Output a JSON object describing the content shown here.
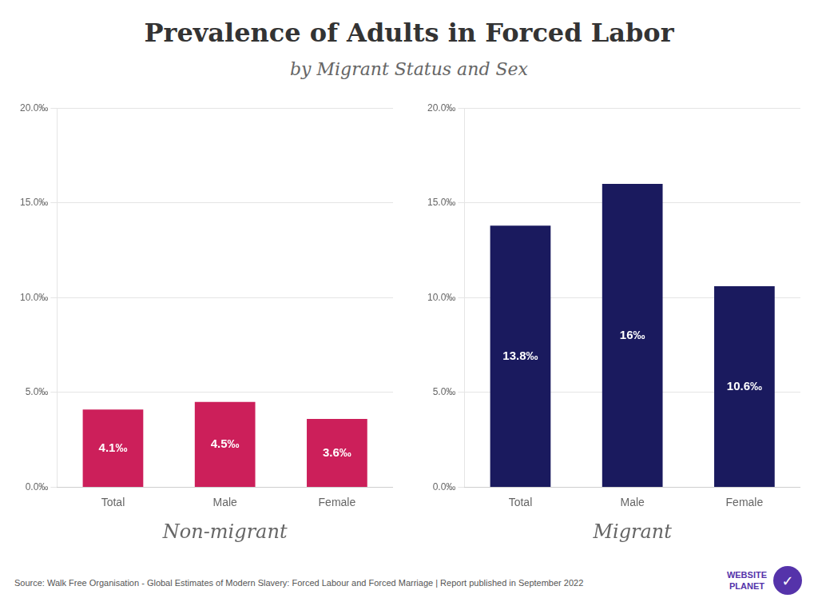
{
  "title": "Prevalence of Adults in Forced Labor",
  "subtitle": "by Migrant Status and Sex",
  "annotations": [
    "Source: Walk Free Organisation - Global Estimates of Modern Slavery: Forced Labour and Forced Marriage | Report published in September 2022",
    "WEBSITE\nPLANET",
    "✓"
  ],
  "chart_data": [
    {
      "type": "bar",
      "x_label": "Non-migrant",
      "categories": [
        "Total",
        "Male",
        "Female"
      ],
      "values": [
        4.1,
        4.5,
        3.6
      ],
      "value_labels": [
        "4.1‰",
        "4.5‰",
        "3.6‰"
      ],
      "color": "#cc1f5a",
      "ylim": [
        0,
        20
      ],
      "yticks": [
        {
          "value": 0,
          "label": "0.0‰"
        },
        {
          "value": 5,
          "label": "5.0‰"
        },
        {
          "value": 10,
          "label": "10.0‰"
        },
        {
          "value": 15,
          "label": "15.0‰"
        },
        {
          "value": 20,
          "label": "20.0‰"
        }
      ],
      "grid": true,
      "data_labels": true
    },
    {
      "type": "bar",
      "x_label": "Migrant",
      "categories": [
        "Total",
        "Male",
        "Female"
      ],
      "values": [
        13.8,
        16.0,
        10.6
      ],
      "value_labels": [
        "13.8‰",
        "16‰",
        "10.6‰"
      ],
      "color": "#1a1a5e",
      "ylim": [
        0,
        20
      ],
      "yticks": [
        {
          "value": 0,
          "label": "0.0‰"
        },
        {
          "value": 5,
          "label": "5.0‰"
        },
        {
          "value": 10,
          "label": "10.0‰"
        },
        {
          "value": 15,
          "label": "15.0‰"
        },
        {
          "value": 20,
          "label": "20.0‰"
        }
      ],
      "grid": true,
      "data_labels": true
    }
  ]
}
